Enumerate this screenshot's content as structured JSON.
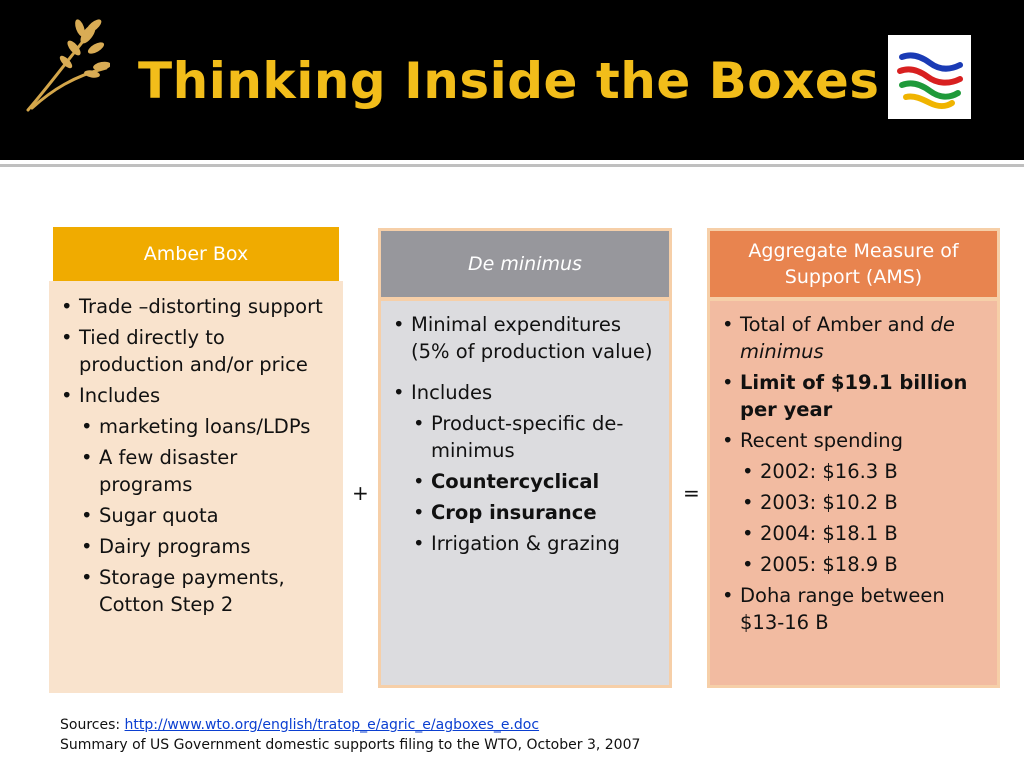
{
  "slide": {
    "title": "Thinking Inside the Boxes"
  },
  "boxes": [
    {
      "header": "Amber Box",
      "header_italic": false,
      "colors": {
        "header": "#f0ab00",
        "body": "#f9e3cd",
        "border": "#f6cfa8"
      },
      "items": [
        {
          "level": 1,
          "text": "Trade –distorting support",
          "bold": false
        },
        {
          "level": 1,
          "text": "Tied directly to production and/or price",
          "bold": false
        },
        {
          "level": 1,
          "text": "Includes",
          "bold": false
        },
        {
          "level": 2,
          "text": "marketing loans/LDPs",
          "bold": false
        },
        {
          "level": 2,
          "text": "A few disaster programs",
          "bold": false
        },
        {
          "level": 2,
          "text": "Sugar quota",
          "bold": false
        },
        {
          "level": 2,
          "text": "Dairy programs",
          "bold": false
        },
        {
          "level": 2,
          "text": "Storage payments, Cotton Step 2",
          "bold": false
        }
      ]
    },
    {
      "header": "De minimus",
      "header_italic": true,
      "colors": {
        "header": "#97979c",
        "body": "#dcdcdf",
        "border": "#f6cfa8"
      },
      "items": [
        {
          "level": 1,
          "text": "Minimal expenditures (5% of production value)",
          "bold": false
        },
        {
          "gap": true
        },
        {
          "level": 1,
          "text": "Includes",
          "bold": false
        },
        {
          "level": 2,
          "text": "Product-specific de-minimus",
          "bold": false
        },
        {
          "level": 2,
          "text": "Countercyclical",
          "bold": true
        },
        {
          "level": 2,
          "text": "Crop insurance",
          "bold": true
        },
        {
          "level": 2,
          "text": "Irrigation & grazing",
          "bold": false
        }
      ]
    },
    {
      "header": "Aggregate Measure of Support (AMS)",
      "header_italic": false,
      "colors": {
        "header": "#e8844f",
        "body": "#f2bba1",
        "border": "#f6cfa8"
      },
      "items": [
        {
          "level": 1,
          "text": "Total of Amber and ",
          "italic_suffix": "de minimus",
          "bold": false
        },
        {
          "level": 1,
          "text": "Limit of $19.1 billion per year",
          "bold": true
        },
        {
          "level": 1,
          "text": "Recent spending",
          "bold": false
        },
        {
          "level": 2,
          "text": "2002: $16.3 B",
          "bold": false
        },
        {
          "level": 2,
          "text": "2003: $10.2 B",
          "bold": false
        },
        {
          "level": 2,
          "text": "2004: $18.1 B",
          "bold": false
        },
        {
          "level": 2,
          "text": "2005: $18.9 B",
          "bold": false
        },
        {
          "level": 1,
          "text": "Doha range between $13-16 B",
          "bold": false
        }
      ]
    }
  ],
  "operators": {
    "plus": "+",
    "equals": "="
  },
  "sources": {
    "label": "Sources: ",
    "link": "http://www.wto.org/english/tratop_e/agric_e/agboxes_e.doc",
    "note": "Summary of US Government domestic supports filing to the WTO, October 3, 2007"
  },
  "icons": {
    "left_logo": "wheat-logo-icon",
    "right_logo": "wto-logo-icon"
  },
  "theme": {
    "title_color": "#f2bd1a",
    "header_bar": "#000000",
    "link_color": "#0b3fd1"
  }
}
